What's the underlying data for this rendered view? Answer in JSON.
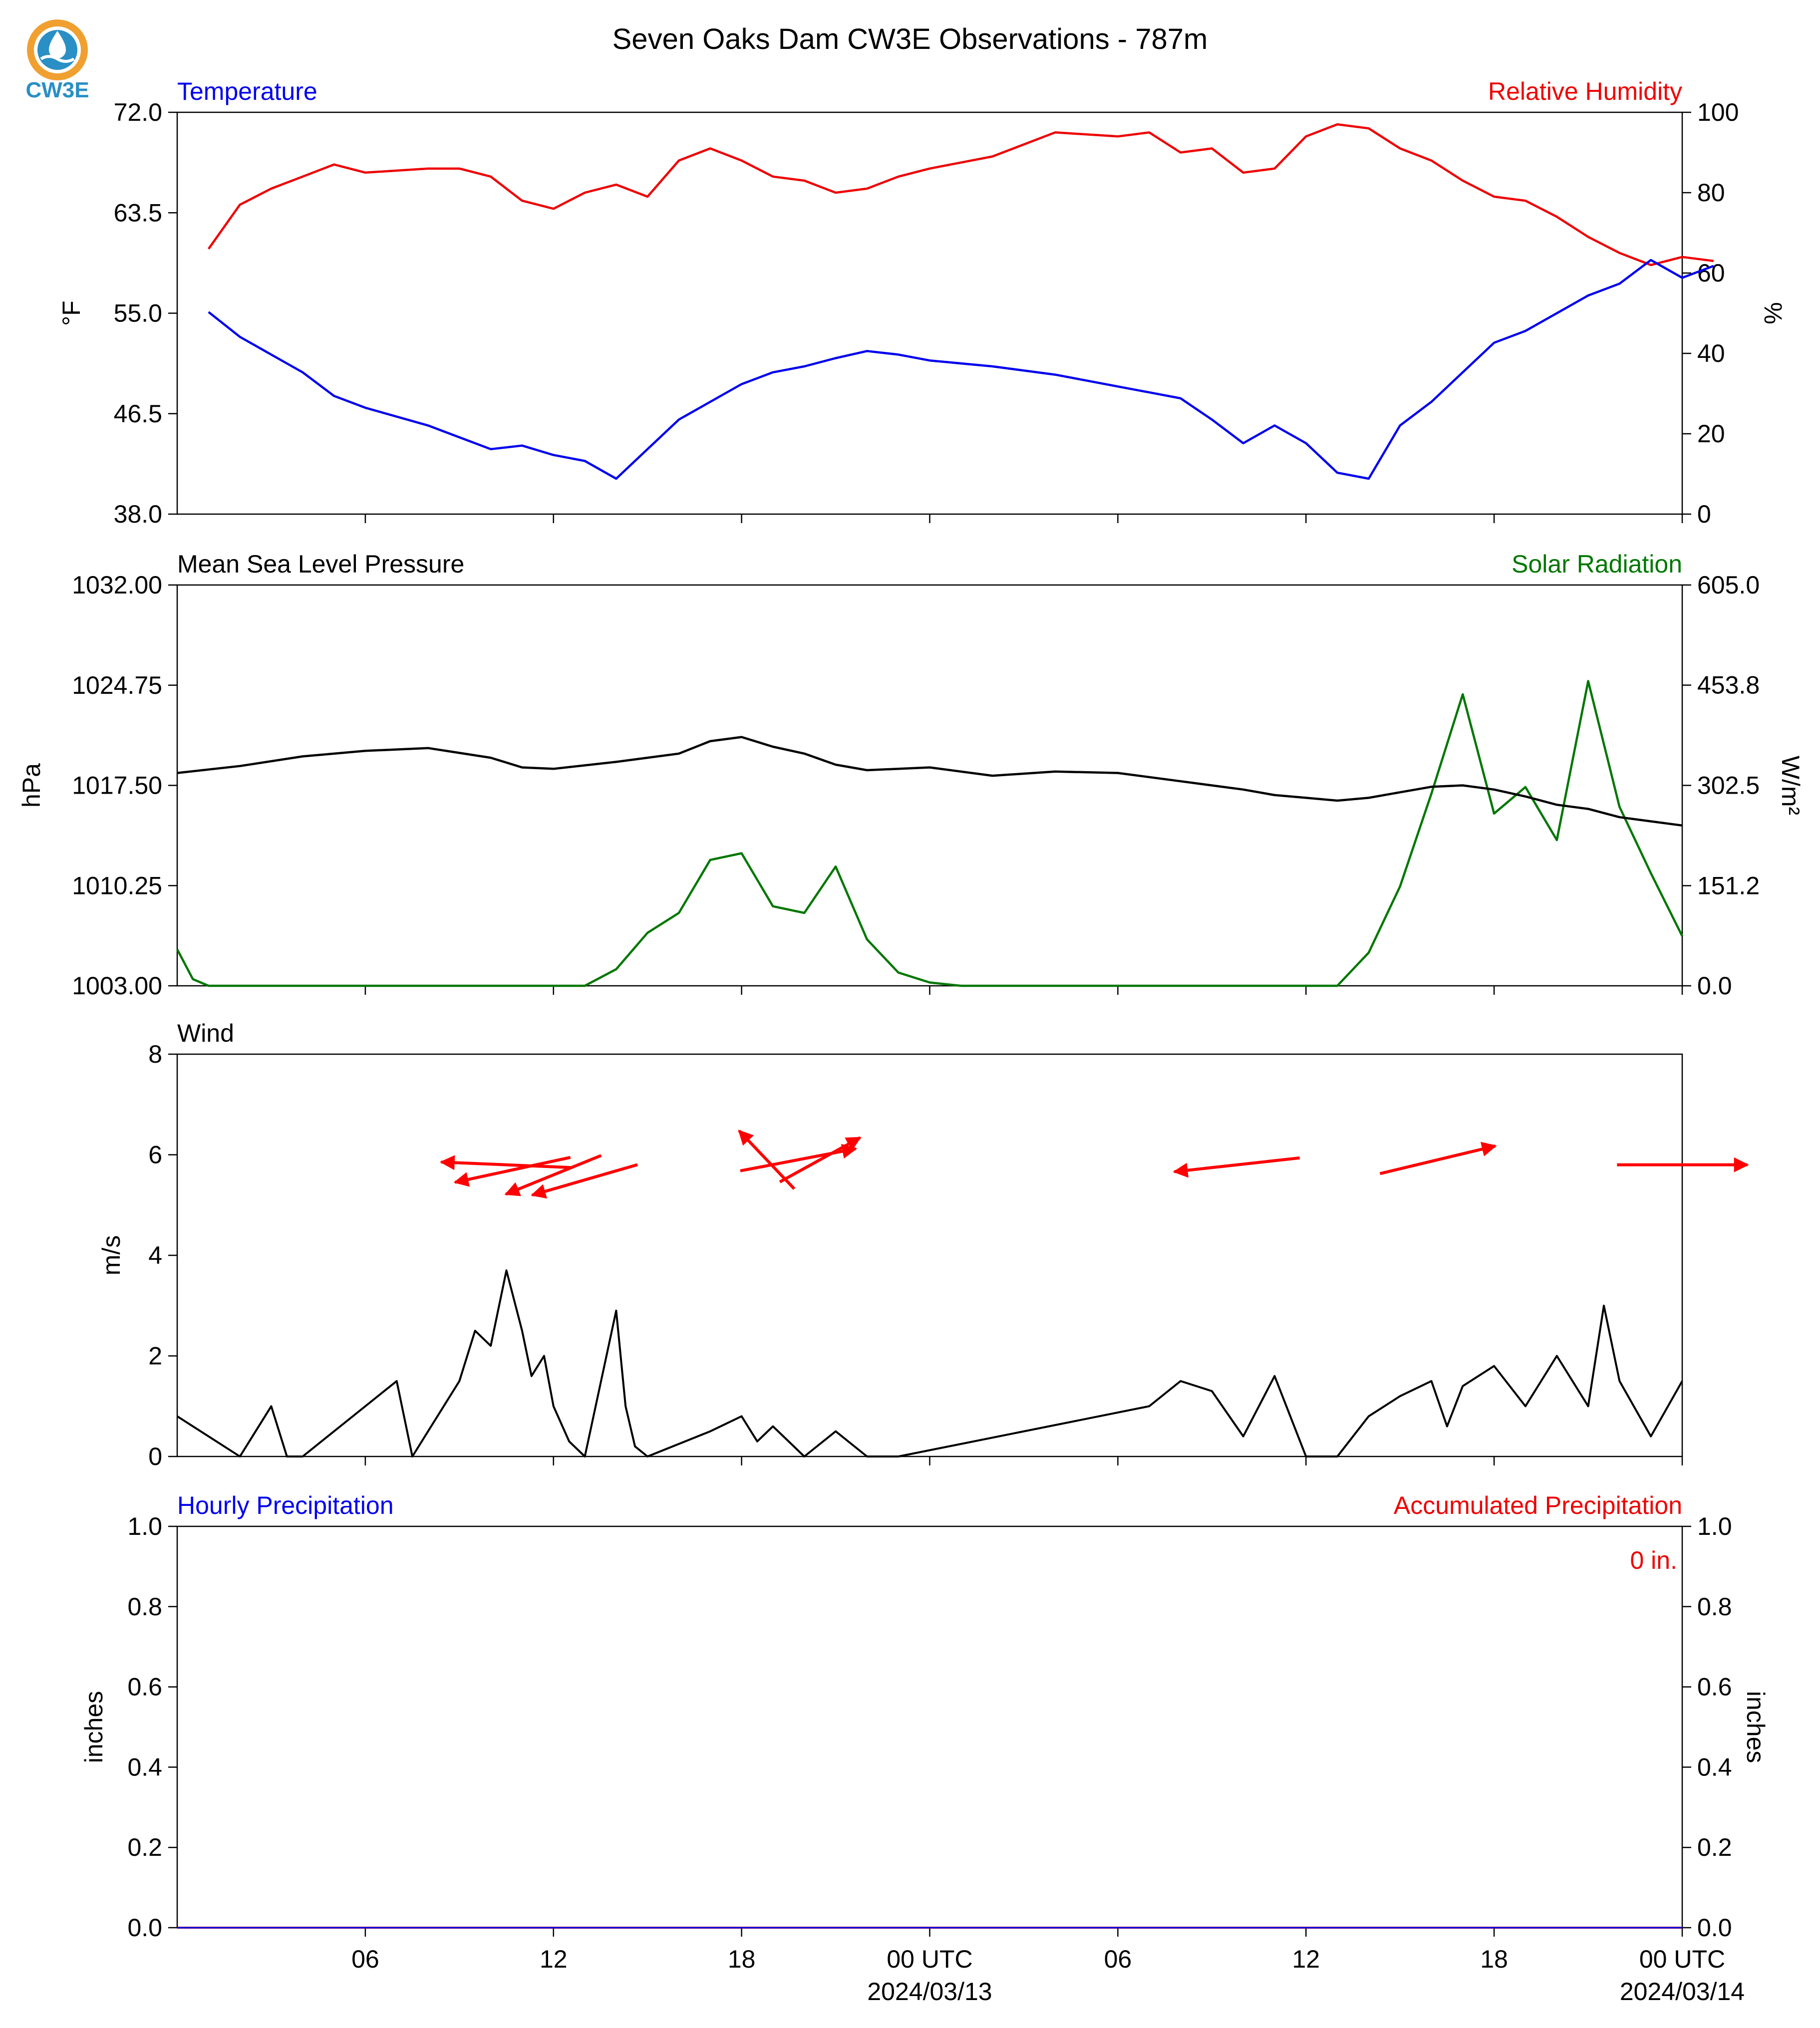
{
  "figure": {
    "title": "Seven Oaks Dam CW3E Observations - 787m",
    "logo_text": "CW3E",
    "x_axis": {
      "start": "2024-03-12 00:00 UTC-approx",
      "tick_labels": [
        "06",
        "12",
        "18",
        "00 UTC",
        "06",
        "12",
        "18",
        "00 UTC"
      ],
      "date_labels": [
        "2024/03/13",
        "2024/03/14"
      ]
    }
  },
  "colors": {
    "temperature": "#0000ee",
    "humidity": "#ee0000",
    "pressure": "#000000",
    "solar": "#007700",
    "wind": "#000000",
    "wind_arrows": "#ff0000",
    "precip_hourly": "#0000ee",
    "precip_accum": "#ee0000"
  },
  "chart_data": [
    {
      "type": "line",
      "panel": "temperature-humidity",
      "left_title": "Temperature",
      "right_title": "Relative Humidity",
      "ylabel_left": "°F",
      "ylabel_right": "%",
      "ylim_left": [
        38.0,
        72.0
      ],
      "ylim_right": [
        0,
        100
      ],
      "yticks_left": [
        "38.0",
        "46.5",
        "55.0",
        "63.5",
        "72.0"
      ],
      "yticks_right": [
        "0",
        "20",
        "40",
        "60",
        "80",
        "100"
      ],
      "x_hours": [
        1,
        2,
        3,
        4,
        5,
        6,
        8,
        9,
        10,
        11,
        12,
        13,
        14,
        15,
        16,
        17,
        18,
        19,
        20,
        21,
        22,
        23,
        24,
        26,
        28,
        30,
        31,
        32,
        33,
        34,
        35,
        36,
        37,
        38,
        39,
        40,
        41,
        42,
        43,
        44,
        45,
        46,
        47,
        48,
        49
      ],
      "series": [
        {
          "name": "Temperature",
          "axis": "left",
          "values": [
            55.1,
            53.0,
            51.5,
            50.0,
            48.0,
            47.0,
            45.5,
            44.5,
            43.5,
            43.8,
            43.0,
            42.5,
            41.0,
            43.5,
            46.0,
            47.5,
            49.0,
            50.0,
            50.5,
            51.2,
            51.8,
            51.5,
            51.0,
            50.5,
            49.8,
            48.8,
            48.3,
            47.8,
            46.0,
            44.0,
            45.5,
            44.0,
            41.5,
            41.0,
            45.5,
            47.5,
            50.0,
            52.5,
            53.5,
            55.0,
            56.5,
            57.5,
            59.5,
            58.0,
            59.0
          ]
        },
        {
          "name": "Relative Humidity",
          "axis": "right",
          "values": [
            66,
            77,
            81,
            84,
            87,
            85,
            86,
            86,
            84,
            78,
            76,
            80,
            82,
            79,
            88,
            91,
            88,
            84,
            83,
            80,
            81,
            84,
            86,
            89,
            95,
            94,
            95,
            90,
            91,
            85,
            86,
            94,
            97,
            96,
            91,
            88,
            83,
            79,
            78,
            74,
            69,
            65,
            62,
            64,
            63
          ]
        }
      ]
    },
    {
      "type": "line",
      "panel": "pressure-solar",
      "left_title": "Mean Sea Level Pressure",
      "right_title": "Solar Radiation",
      "ylabel_left": "hPa",
      "ylabel_right": "W/m²",
      "ylim_left": [
        1003.0,
        1032.0
      ],
      "ylim_right": [
        0.0,
        605.0
      ],
      "yticks_left": [
        "1003.00",
        "1010.25",
        "1017.50",
        "1024.75",
        "1032.00"
      ],
      "yticks_right": [
        "0.0",
        "151.2",
        "302.5",
        "453.8",
        "605.0"
      ],
      "pressure": {
        "name": "Mean Sea Level Pressure",
        "x_hours": [
          0,
          2,
          4,
          6,
          8,
          10,
          11,
          12,
          14,
          16,
          17,
          18,
          19,
          20,
          21,
          22,
          24,
          26,
          28,
          30,
          32,
          34,
          35,
          36,
          37,
          38,
          39,
          40,
          41,
          42,
          43,
          44,
          45,
          46,
          47,
          48
        ],
        "values": [
          1018.4,
          1018.9,
          1019.6,
          1020.0,
          1020.2,
          1019.5,
          1018.8,
          1018.7,
          1019.2,
          1019.8,
          1020.7,
          1021.0,
          1020.3,
          1019.8,
          1019.0,
          1018.6,
          1018.8,
          1018.2,
          1018.5,
          1018.4,
          1017.8,
          1017.2,
          1016.8,
          1016.6,
          1016.4,
          1016.6,
          1017.0,
          1017.4,
          1017.5,
          1017.2,
          1016.7,
          1016.1,
          1015.8,
          1015.2,
          1014.9,
          1014.6
        ]
      },
      "solar": {
        "name": "Solar Radiation",
        "x_hours": [
          0,
          0.5,
          1,
          13,
          14,
          15,
          16,
          17,
          18,
          19,
          20,
          21,
          22,
          23,
          24,
          25,
          37,
          38,
          39,
          40,
          41,
          42,
          43,
          44,
          45,
          46,
          47,
          48
        ],
        "values": [
          55,
          10,
          0,
          0,
          25,
          80,
          110,
          190,
          200,
          120,
          110,
          180,
          70,
          20,
          5,
          0,
          0,
          50,
          150,
          290,
          440,
          260,
          300,
          220,
          460,
          270,
          170,
          75
        ]
      }
    },
    {
      "type": "line",
      "panel": "wind",
      "left_title": "Wind",
      "ylabel": "m/s",
      "ylim": [
        0,
        8
      ],
      "yticks": [
        "0",
        "2",
        "4",
        "6",
        "8"
      ],
      "wind_speed": {
        "name": "Wind",
        "x_hours": [
          0,
          1,
          2,
          3,
          3.5,
          4,
          7,
          7.5,
          8,
          9,
          9.5,
          10,
          10.5,
          11,
          11.3,
          11.7,
          12,
          12.5,
          13,
          14,
          14.3,
          14.6,
          15,
          17,
          18,
          18.5,
          19,
          20,
          21,
          22,
          23,
          31,
          32,
          33,
          34,
          35,
          36,
          37,
          38,
          39,
          40,
          40.5,
          41,
          42,
          43,
          44,
          45,
          45.5,
          46,
          47,
          48
        ],
        "values": [
          0.8,
          0.4,
          0,
          1.0,
          0,
          0,
          1.5,
          0,
          0.5,
          1.5,
          2.5,
          2.2,
          3.7,
          2.5,
          1.6,
          2.0,
          1.0,
          0.3,
          0,
          2.9,
          1.0,
          0.2,
          0,
          0.5,
          0.8,
          0.3,
          0.6,
          0,
          0.5,
          0,
          0,
          1.0,
          1.5,
          1.3,
          0.4,
          1.6,
          0,
          0,
          0.8,
          1.2,
          1.5,
          0.6,
          1.4,
          1.8,
          1.0,
          2.0,
          1.0,
          3.0,
          1.5,
          0.4,
          1.5
        ]
      },
      "arrows": {
        "x_hours": [
          10.5,
          10.7,
          12.0,
          13.0,
          18.8,
          19.8,
          20.5,
          33.8,
          40.2,
          48.0
        ],
        "y": [
          5.8,
          5.7,
          5.6,
          5.5,
          5.9,
          5.9,
          5.9,
          5.8,
          5.9,
          5.8
        ],
        "u": [
          -2.6,
          -2.3,
          -1.9,
          -2.1,
          -1.1,
          2.3,
          1.6,
          -2.5,
          2.3,
          2.6
        ],
        "v": [
          0.2,
          -0.9,
          -1.4,
          -1.1,
          2.1,
          0.8,
          1.6,
          -0.5,
          1.0,
          0.0
        ]
      }
    },
    {
      "type": "line",
      "panel": "precipitation",
      "left_title": "Hourly Precipitation",
      "right_title": "Accumulated Precipitation",
      "ylabel_left": "inches",
      "ylabel_right": "inches",
      "ylim_left": [
        0.0,
        1.0
      ],
      "ylim_right": [
        0.0,
        1.0
      ],
      "yticks_left": [
        "0.0",
        "0.2",
        "0.4",
        "0.6",
        "0.8",
        "1.0"
      ],
      "yticks_right": [
        "0.0",
        "0.2",
        "0.4",
        "0.6",
        "0.8",
        "1.0"
      ],
      "accumulated_total_label": "0 in.",
      "x_hours": [
        0,
        48
      ],
      "hourly": [
        0,
        0
      ],
      "accumulated": [
        0,
        0
      ]
    }
  ]
}
